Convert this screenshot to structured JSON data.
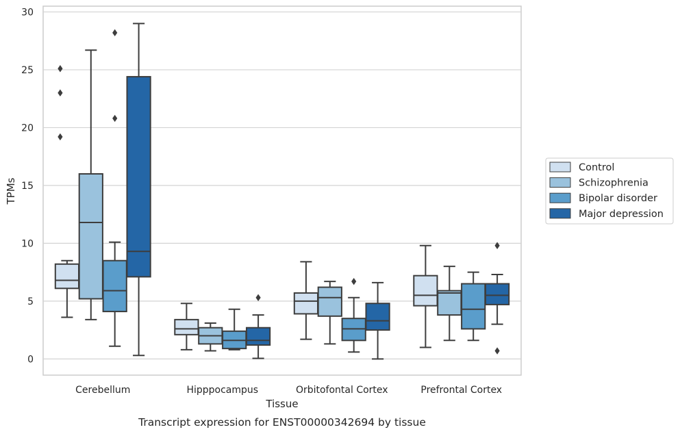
{
  "chart_data": {
    "type": "box",
    "title": "",
    "caption": "Transcript expression for ENST00000342694 by tissue",
    "xlabel": "Tissue",
    "ylabel": "TPMs",
    "ylim": [
      -1.4,
      30.5
    ],
    "yticks": [
      0,
      5,
      10,
      15,
      20,
      25,
      30
    ],
    "grid": "horizontal",
    "legend_position": "right",
    "categories": [
      "Cerebellum",
      "Hipppocampus",
      "Orbitofontal Cortex",
      "Prefrontal Cortex"
    ],
    "series": [
      {
        "name": "Control",
        "color": "#d0e0f0",
        "boxes": [
          {
            "whislo": 3.6,
            "q1": 6.1,
            "med": 6.8,
            "q3": 8.2,
            "whishi": 8.5,
            "fliers": []
          },
          {
            "whislo": 0.8,
            "q1": 2.1,
            "med": 2.6,
            "q3": 3.4,
            "whishi": 4.8,
            "fliers": []
          },
          {
            "whislo": 1.7,
            "q1": 3.9,
            "med": 5.0,
            "q3": 5.7,
            "whishi": 8.4,
            "fliers": []
          },
          {
            "whislo": 1.0,
            "q1": 4.6,
            "med": 5.5,
            "q3": 7.2,
            "whishi": 9.8,
            "fliers": []
          }
        ]
      },
      {
        "name": "Schizophrenia",
        "color": "#9ac2dd",
        "boxes": [
          {
            "whislo": 3.4,
            "q1": 5.2,
            "med": 11.8,
            "q3": 16.0,
            "whishi": 26.7,
            "fliers": []
          },
          {
            "whislo": 0.7,
            "q1": 1.3,
            "med": 2.0,
            "q3": 2.7,
            "whishi": 3.1,
            "fliers": []
          },
          {
            "whislo": 1.3,
            "q1": 3.7,
            "med": 5.3,
            "q3": 6.2,
            "whishi": 6.7,
            "fliers": []
          },
          {
            "whislo": 1.6,
            "q1": 3.8,
            "med": 5.7,
            "q3": 5.9,
            "whishi": 8.0,
            "fliers": []
          }
        ]
      },
      {
        "name": "Bipolar disorder",
        "color": "#5a9dcb",
        "boxes": [
          {
            "whislo": 1.1,
            "q1": 4.1,
            "med": 5.9,
            "q3": 8.5,
            "whishi": 10.1,
            "fliers": [
              20.8,
              28.2
            ]
          },
          {
            "whislo": 0.8,
            "q1": 0.9,
            "med": 1.6,
            "q3": 2.4,
            "whishi": 4.3,
            "fliers": []
          },
          {
            "whislo": 0.6,
            "q1": 1.6,
            "med": 2.6,
            "q3": 3.5,
            "whishi": 5.3,
            "fliers": [
              6.7
            ]
          },
          {
            "whislo": 1.6,
            "q1": 2.6,
            "med": 4.3,
            "q3": 6.5,
            "whishi": 7.5,
            "fliers": []
          }
        ]
      },
      {
        "name": "Major depression",
        "color": "#2466a6",
        "boxes": [
          {
            "whislo": 0.3,
            "q1": 7.1,
            "med": 9.3,
            "q3": 24.4,
            "whishi": 29.0,
            "fliers": []
          },
          {
            "whislo": 0.05,
            "q1": 1.2,
            "med": 1.6,
            "q3": 2.7,
            "whishi": 3.8,
            "fliers": [
              5.3
            ]
          },
          {
            "whislo": 0.0,
            "q1": 2.5,
            "med": 3.3,
            "q3": 4.8,
            "whishi": 6.6,
            "fliers": []
          },
          {
            "whislo": 3.0,
            "q1": 4.7,
            "med": 5.5,
            "q3": 6.5,
            "whishi": 7.3,
            "fliers": [
              0.7,
              9.8
            ]
          }
        ]
      }
    ],
    "extra_fliers": [
      {
        "category": "Cerebellum",
        "x_offset_series": -0.5,
        "values": [
          19.2,
          23.0,
          25.1
        ]
      }
    ]
  }
}
